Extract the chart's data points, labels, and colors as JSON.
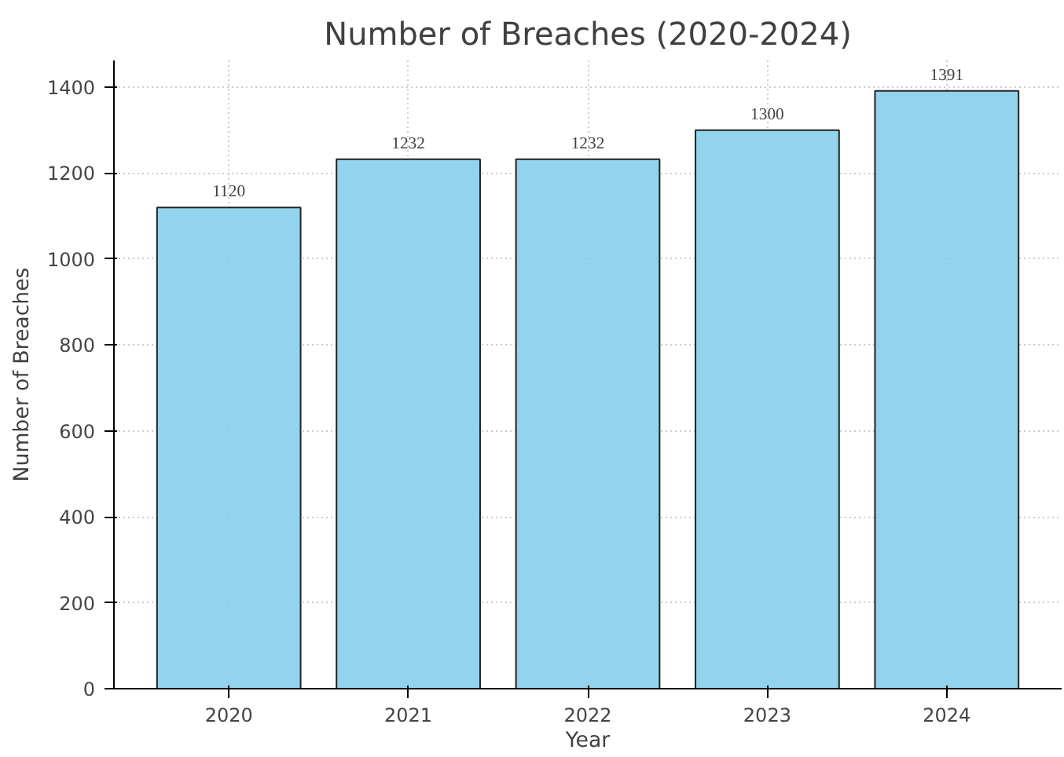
{
  "chart_data": {
    "type": "bar",
    "title": "Number of Breaches (2020-2024)",
    "xlabel": "Year",
    "ylabel": "Number of Breaches",
    "categories": [
      "2020",
      "2021",
      "2022",
      "2023",
      "2024"
    ],
    "values": [
      1120,
      1232,
      1232,
      1300,
      1391
    ],
    "color": "#87ceeb",
    "ylim": [
      0,
      1462
    ],
    "yticks": [
      0,
      200,
      400,
      600,
      800,
      1000,
      1200,
      1400
    ],
    "grid": true,
    "data_labels": true
  }
}
